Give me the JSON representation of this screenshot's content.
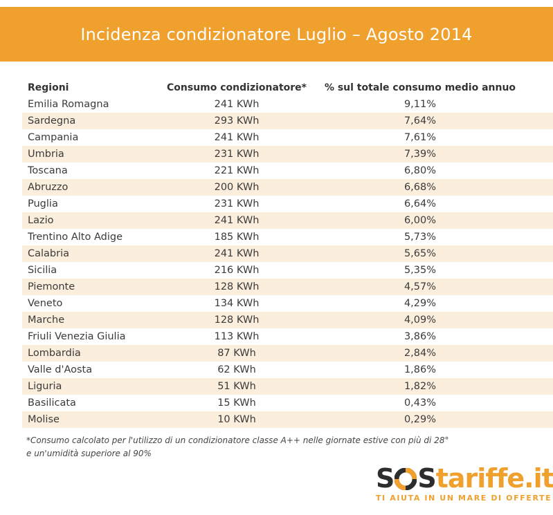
{
  "title": "Incidenza condizionatore Luglio – Agosto 2014",
  "chart_data": {
    "type": "table",
    "title": "Incidenza condizionatore Luglio – Agosto 2014",
    "columns": [
      "Regioni",
      "Consumo condizionatore*",
      "% sul totale consumo medio annuo"
    ],
    "rows": [
      [
        "Emilia Romagna",
        "241 KWh",
        "9,11%"
      ],
      [
        "Sardegna",
        "293 KWh",
        "7,64%"
      ],
      [
        "Campania",
        "241 KWh",
        "7,61%"
      ],
      [
        "Umbria",
        "231 KWh",
        "7,39%"
      ],
      [
        "Toscana",
        "221 KWh",
        "6,80%"
      ],
      [
        "Abruzzo",
        "200 KWh",
        "6,68%"
      ],
      [
        "Puglia",
        "231 KWh",
        "6,64%"
      ],
      [
        "Lazio",
        "241 KWh",
        "6,00%"
      ],
      [
        "Trentino Alto Adige",
        "185 KWh",
        "5,73%"
      ],
      [
        "Calabria",
        "241 KWh",
        "5,65%"
      ],
      [
        "Sicilia",
        "216 KWh",
        "5,35%"
      ],
      [
        "Piemonte",
        "128 KWh",
        "4,57%"
      ],
      [
        "Veneto",
        "134 KWh",
        "4,29%"
      ],
      [
        "Marche",
        "128 KWh",
        "4,09%"
      ],
      [
        "Friuli Venezia Giulia",
        "113 KWh",
        "3,86%"
      ],
      [
        "Lombardia",
        "87 KWh",
        "2,84%"
      ],
      [
        "Valle d'Aosta",
        "62 KWh",
        "1,86%"
      ],
      [
        "Liguria",
        "51 KWh",
        "1,82%"
      ],
      [
        "Basilicata",
        "15 KWh",
        "0,43%"
      ],
      [
        "Molise",
        "10 KWh",
        "0,29%"
      ]
    ]
  },
  "footnote": {
    "line1": "*Consumo calcolato per l'utilizzo di un condizionatore classe A++ nelle giornate estive con più di 28°",
    "line2": "e un'umidità superiore al 90%"
  },
  "logo": {
    "text_left": "S",
    "text_middle": "S",
    "text_right": "tariffe.it",
    "tagline": "TI AIUTA IN UN MARE DI OFFERTE"
  },
  "colors": {
    "accent": "#f0a02d",
    "row_alt": "#fbeedc",
    "text": "#3a3a3a"
  }
}
